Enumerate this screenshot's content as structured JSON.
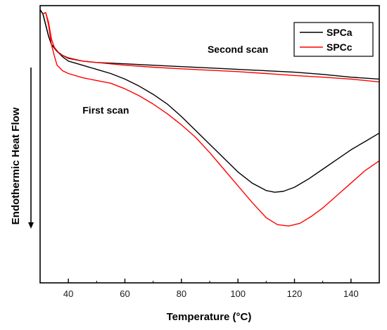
{
  "chart_data": {
    "type": "line",
    "title": "",
    "xlabel": "Temperature (°C)",
    "ylabel": "Endothermic Heat Flow",
    "xlim": [
      30,
      150
    ],
    "ylim": [
      0,
      1
    ],
    "x_ticks": [
      "40",
      "60",
      "80",
      "100",
      "120",
      "140"
    ],
    "y_axis_arrow": "down",
    "grid": false,
    "legend_position": "top-right",
    "annotations": [
      {
        "text": "Second scan",
        "x": 100,
        "y": 0.83
      },
      {
        "text": "First scan",
        "x": 45,
        "y": 0.61
      }
    ],
    "series": [
      {
        "name": "SPCa",
        "color": "#000000",
        "curves": [
          {
            "label": "Second scan",
            "points": [
              [
                30,
                0.985
              ],
              [
                31,
                0.97
              ],
              [
                32,
                0.93
              ],
              [
                33,
                0.89
              ],
              [
                34,
                0.86
              ],
              [
                36,
                0.835
              ],
              [
                38,
                0.82
              ],
              [
                40,
                0.81
              ],
              [
                45,
                0.8
              ],
              [
                50,
                0.795
              ],
              [
                60,
                0.79
              ],
              [
                70,
                0.785
              ],
              [
                80,
                0.78
              ],
              [
                90,
                0.775
              ],
              [
                100,
                0.77
              ],
              [
                110,
                0.765
              ],
              [
                120,
                0.76
              ],
              [
                130,
                0.752
              ],
              [
                140,
                0.742
              ],
              [
                150,
                0.735
              ]
            ]
          },
          {
            "label": "First scan",
            "points": [
              [
                30,
                0.985
              ],
              [
                31,
                0.97
              ],
              [
                32,
                0.93
              ],
              [
                33,
                0.89
              ],
              [
                34,
                0.86
              ],
              [
                36,
                0.835
              ],
              [
                38,
                0.815
              ],
              [
                40,
                0.8
              ],
              [
                45,
                0.785
              ],
              [
                50,
                0.77
              ],
              [
                55,
                0.755
              ],
              [
                60,
                0.735
              ],
              [
                65,
                0.71
              ],
              [
                70,
                0.68
              ],
              [
                75,
                0.645
              ],
              [
                80,
                0.6
              ],
              [
                85,
                0.55
              ],
              [
                90,
                0.5
              ],
              [
                95,
                0.45
              ],
              [
                100,
                0.4
              ],
              [
                105,
                0.36
              ],
              [
                110,
                0.333
              ],
              [
                113,
                0.327
              ],
              [
                116,
                0.33
              ],
              [
                120,
                0.345
              ],
              [
                125,
                0.375
              ],
              [
                130,
                0.41
              ],
              [
                135,
                0.445
              ],
              [
                140,
                0.48
              ],
              [
                145,
                0.51
              ],
              [
                150,
                0.54
              ]
            ]
          }
        ]
      },
      {
        "name": "SPCc",
        "color": "#ff0000",
        "curves": [
          {
            "label": "Second scan",
            "points": [
              [
                31,
                0.97
              ],
              [
                32,
                0.975
              ],
              [
                33,
                0.94
              ],
              [
                34,
                0.88
              ],
              [
                35,
                0.85
              ],
              [
                37,
                0.825
              ],
              [
                40,
                0.812
              ],
              [
                45,
                0.8
              ],
              [
                50,
                0.795
              ],
              [
                60,
                0.785
              ],
              [
                70,
                0.778
              ],
              [
                80,
                0.772
              ],
              [
                90,
                0.767
              ],
              [
                100,
                0.762
              ],
              [
                110,
                0.755
              ],
              [
                120,
                0.748
              ],
              [
                130,
                0.742
              ],
              [
                140,
                0.735
              ],
              [
                150,
                0.725
              ]
            ]
          },
          {
            "label": "First scan",
            "points": [
              [
                31,
                0.97
              ],
              [
                32,
                0.975
              ],
              [
                33,
                0.93
              ],
              [
                34,
                0.86
              ],
              [
                35,
                0.82
              ],
              [
                36,
                0.785
              ],
              [
                38,
                0.765
              ],
              [
                40,
                0.755
              ],
              [
                45,
                0.74
              ],
              [
                50,
                0.73
              ],
              [
                55,
                0.72
              ],
              [
                60,
                0.7
              ],
              [
                65,
                0.675
              ],
              [
                70,
                0.645
              ],
              [
                75,
                0.61
              ],
              [
                80,
                0.57
              ],
              [
                85,
                0.525
              ],
              [
                90,
                0.47
              ],
              [
                95,
                0.41
              ],
              [
                100,
                0.35
              ],
              [
                105,
                0.29
              ],
              [
                110,
                0.235
              ],
              [
                114,
                0.21
              ],
              [
                118,
                0.205
              ],
              [
                122,
                0.215
              ],
              [
                126,
                0.24
              ],
              [
                130,
                0.27
              ],
              [
                135,
                0.315
              ],
              [
                140,
                0.36
              ],
              [
                145,
                0.405
              ],
              [
                150,
                0.44
              ]
            ]
          }
        ]
      }
    ]
  }
}
